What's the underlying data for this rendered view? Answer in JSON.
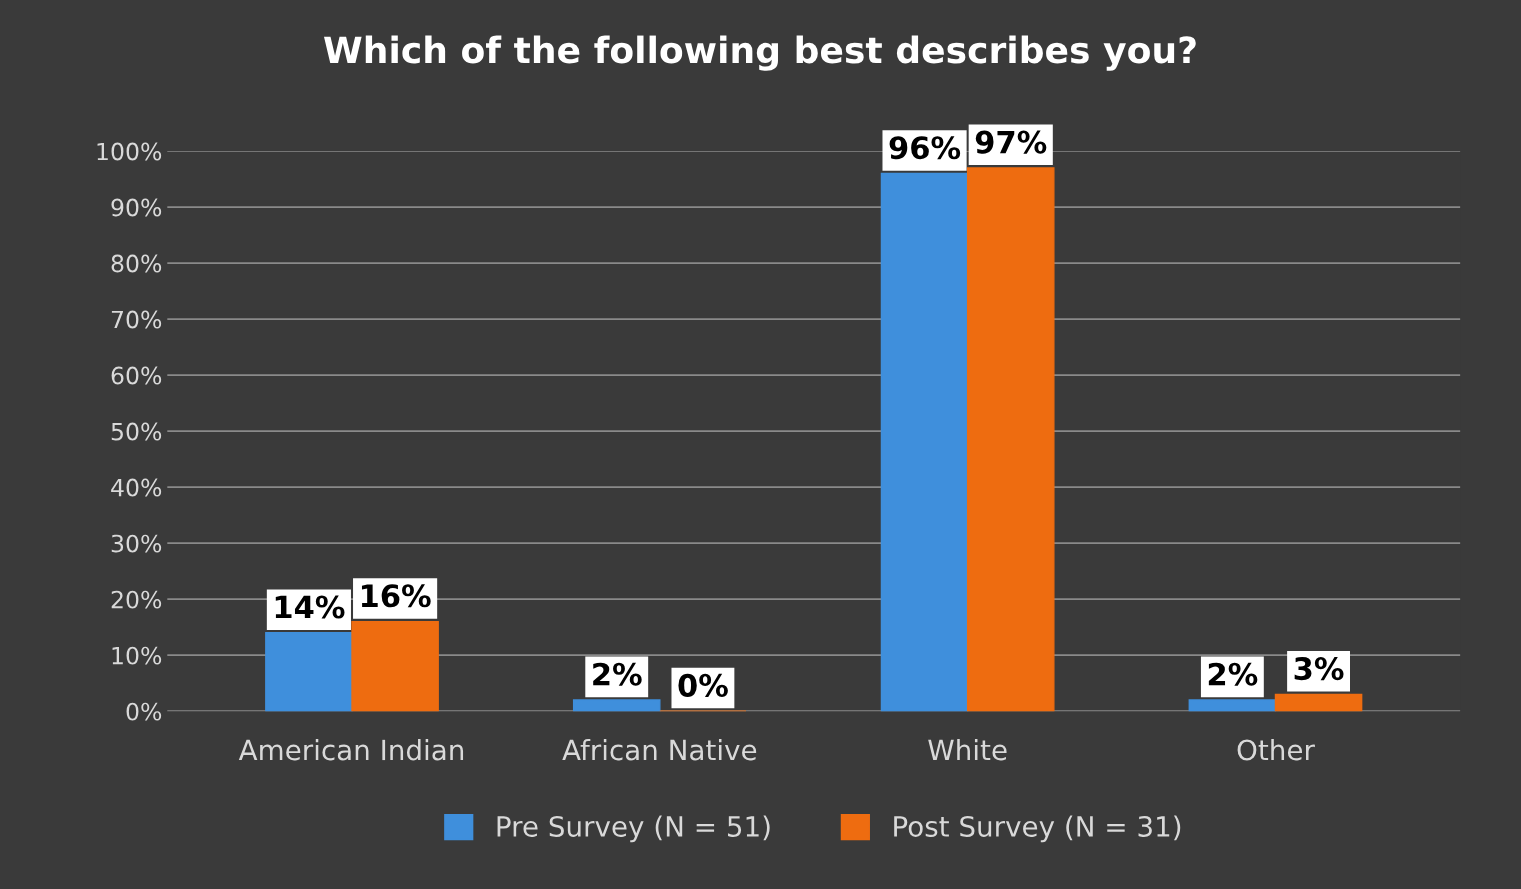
{
  "chart_data": {
    "type": "bar",
    "title": "Which of the following best describes you?",
    "categories": [
      "American Indian",
      "African Native",
      "White",
      "Other"
    ],
    "series": [
      {
        "name": "Pre Survey (N = 51)",
        "color": "#3f8fdc",
        "values": [
          14,
          2,
          96,
          2
        ],
        "value_labels": [
          "14%",
          "2%",
          "96%",
          "2%"
        ]
      },
      {
        "name": "Post Survey (N = 31)",
        "color": "#ee6c10",
        "values": [
          16,
          0,
          97,
          3
        ],
        "value_labels": [
          "16%",
          "0%",
          "97%",
          "3%"
        ]
      }
    ],
    "ylim": [
      0,
      100
    ],
    "yticks": [
      {
        "value": 0,
        "label": "0%"
      },
      {
        "value": 10,
        "label": "10%"
      },
      {
        "value": 20,
        "label": "20%"
      },
      {
        "value": 30,
        "label": "30%"
      },
      {
        "value": 40,
        "label": "40%"
      },
      {
        "value": 50,
        "label": "50%"
      },
      {
        "value": 60,
        "label": "60%"
      },
      {
        "value": 70,
        "label": "70%"
      },
      {
        "value": 80,
        "label": "80%"
      },
      {
        "value": 90,
        "label": "90%"
      },
      {
        "value": 100,
        "label": "100%"
      }
    ],
    "grid": "y",
    "legend": "bottom"
  }
}
